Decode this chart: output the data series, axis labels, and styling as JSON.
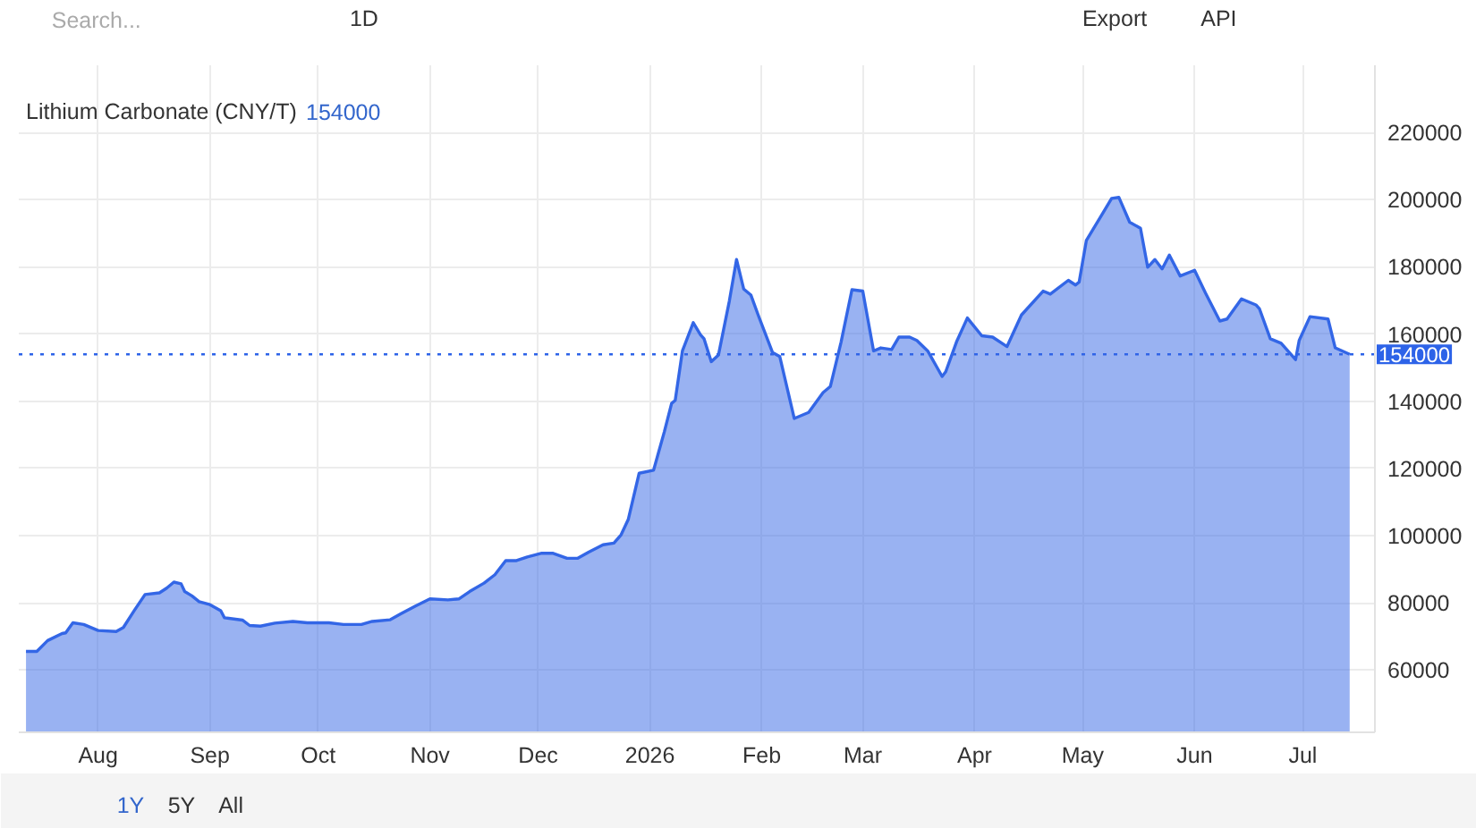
{
  "chart_data": {
    "type": "area",
    "title": "Lithium Carbonate (CNY/T)",
    "annotations": [
      "154000",
      "Search...",
      "1D",
      "Export",
      "API",
      "1Y",
      "5Y",
      "All"
    ],
    "x": [
      "2025-07-12",
      "2025-07-15",
      "2025-07-18",
      "2025-07-22",
      "2025-07-23",
      "2025-07-25",
      "2025-07-28",
      "2025-08-01",
      "2025-08-06",
      "2025-08-08",
      "2025-08-11",
      "2025-08-14",
      "2025-08-18",
      "2025-08-20",
      "2025-08-22",
      "2025-08-24",
      "2025-08-25",
      "2025-08-27",
      "2025-08-29",
      "2025-09-01",
      "2025-09-04",
      "2025-09-05",
      "2025-09-10",
      "2025-09-12",
      "2025-09-15",
      "2025-09-19",
      "2025-09-24",
      "2025-09-28",
      "2025-10-04",
      "2025-10-08",
      "2025-10-13",
      "2025-10-16",
      "2025-10-21",
      "2025-10-24",
      "2025-10-28",
      "2025-11-01",
      "2025-11-06",
      "2025-11-09",
      "2025-11-12",
      "2025-11-16",
      "2025-11-19",
      "2025-11-22",
      "2025-11-25",
      "2025-11-28",
      "2025-12-02",
      "2025-12-05",
      "2025-12-09",
      "2025-12-12",
      "2025-12-15",
      "2025-12-19",
      "2025-12-22",
      "2025-12-24",
      "2025-12-26",
      "2025-12-29",
      "2026-01-02",
      "2026-01-05",
      "2026-01-07",
      "2026-01-08",
      "2026-01-10",
      "2026-01-13",
      "2026-01-15",
      "2026-01-16",
      "2026-01-18",
      "2026-01-20",
      "2026-01-23",
      "2026-01-25",
      "2026-01-27",
      "2026-01-29",
      "2026-01-31",
      "2026-02-04",
      "2026-02-06",
      "2026-02-10",
      "2026-02-14",
      "2026-02-18",
      "2026-02-20",
      "2026-02-23",
      "2026-02-26",
      "2026-03-01",
      "2026-03-04",
      "2026-03-06",
      "2026-03-09",
      "2026-03-11",
      "2026-03-14",
      "2026-03-16",
      "2026-03-19",
      "2026-03-23",
      "2026-03-24",
      "2026-03-27",
      "2026-03-30",
      "2026-04-03",
      "2026-04-06",
      "2026-04-10",
      "2026-04-14",
      "2026-04-20",
      "2026-04-22",
      "2026-04-27",
      "2026-04-29",
      "2026-04-30",
      "2026-05-02",
      "2026-05-06",
      "2026-05-09",
      "2026-05-11",
      "2026-05-14",
      "2026-05-17",
      "2026-05-19",
      "2026-05-21",
      "2026-05-23",
      "2026-05-25",
      "2026-05-28",
      "2026-06-01",
      "2026-06-04",
      "2026-06-08",
      "2026-06-10",
      "2026-06-14",
      "2026-06-18",
      "2026-06-19",
      "2026-06-22",
      "2026-06-25",
      "2026-06-29",
      "2026-06-30",
      "2026-07-03",
      "2026-07-08",
      "2026-07-10",
      "2026-07-14"
    ],
    "series": [
      {
        "color": "#3366e6",
        "values": [
          65600,
          65600,
          68800,
          70900,
          71100,
          74100,
          73600,
          71800,
          71500,
          72700,
          77700,
          82500,
          83000,
          84400,
          86200,
          85700,
          83400,
          82100,
          80400,
          79500,
          77700,
          75600,
          74900,
          73300,
          73100,
          74000,
          74500,
          74100,
          74100,
          73600,
          73600,
          74500,
          75000,
          76800,
          79100,
          81200,
          80900,
          81200,
          83400,
          85900,
          88400,
          92600,
          92600,
          93700,
          94800,
          94800,
          93300,
          93300,
          95100,
          97300,
          97800,
          100300,
          104900,
          118600,
          119500,
          131000,
          139400,
          140300,
          155000,
          163400,
          159800,
          158600,
          151800,
          153800,
          169800,
          182200,
          173400,
          171600,
          165700,
          154500,
          153300,
          134900,
          136700,
          142600,
          144400,
          157700,
          173200,
          172800,
          155000,
          155900,
          155400,
          159100,
          159100,
          158100,
          155000,
          147400,
          148800,
          157700,
          164800,
          159500,
          159100,
          156300,
          165700,
          172800,
          171900,
          176000,
          174600,
          175500,
          187900,
          195000,
          200400,
          200700,
          193300,
          191500,
          179900,
          182200,
          179400,
          183500,
          177300,
          179000,
          172300,
          163900,
          164500,
          170500,
          168700,
          167500,
          158600,
          157300,
          152400,
          158100,
          165200,
          164500,
          155900,
          154000
        ]
      }
    ],
    "xlim": [
      "2025-07-10",
      "2026-07-21"
    ],
    "xticks": [
      {
        "value": "2025-08-01",
        "label": "Aug"
      },
      {
        "value": "2025-09-01",
        "label": "Sep"
      },
      {
        "value": "2025-10-01",
        "label": "Oct"
      },
      {
        "value": "2025-11-01",
        "label": "Nov"
      },
      {
        "value": "2025-12-01",
        "label": "Dec"
      },
      {
        "value": "2026-01-01",
        "label": "2026"
      },
      {
        "value": "2026-02-01",
        "label": "Feb"
      },
      {
        "value": "2026-03-01",
        "label": "Mar"
      },
      {
        "value": "2026-04-01",
        "label": "Apr"
      },
      {
        "value": "2026-05-01",
        "label": "May"
      },
      {
        "value": "2026-06-01",
        "label": "Jun"
      },
      {
        "value": "2026-07-01",
        "label": "Jul"
      }
    ],
    "ylim": [
      41500,
      240000
    ],
    "yticks": [
      60000,
      80000,
      100000,
      120000,
      140000,
      160000,
      180000,
      200000,
      220000
    ],
    "ref_lines": [
      {
        "axis": "y",
        "value": 154000,
        "label": "154000",
        "color": "#2d63e8",
        "line_style": "dotted"
      }
    ],
    "grid": true
  }
}
